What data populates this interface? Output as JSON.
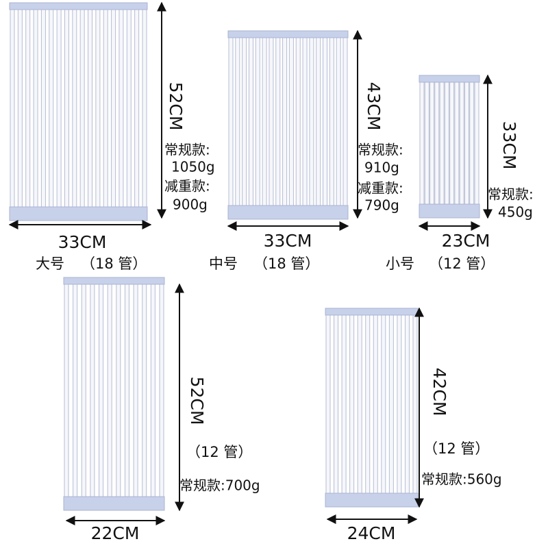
{
  "racks": [
    {
      "height": "52CM",
      "width": "33CM",
      "name": "大号",
      "tubes": "（18 管）",
      "weights": [
        "常规款:",
        "1050g",
        "减重款:",
        "900g"
      ]
    },
    {
      "height": "43CM",
      "width": "33CM",
      "name": "中号",
      "tubes": "（18 管）",
      "weights": [
        "常规款:",
        "910g",
        "减重款:",
        "790g"
      ]
    },
    {
      "height": "33CM",
      "width": "23CM",
      "name": "小号",
      "tubes": "（12 管）",
      "weights": [
        "常规款:",
        "450g"
      ]
    },
    {
      "height": "52CM",
      "width": "22CM",
      "tubes": "（12 管）",
      "weights": [
        "常规款:700g"
      ]
    },
    {
      "height": "42CM",
      "width": "24CM",
      "tubes": "（12 管）",
      "weights": [
        "常规款:560g"
      ]
    }
  ]
}
